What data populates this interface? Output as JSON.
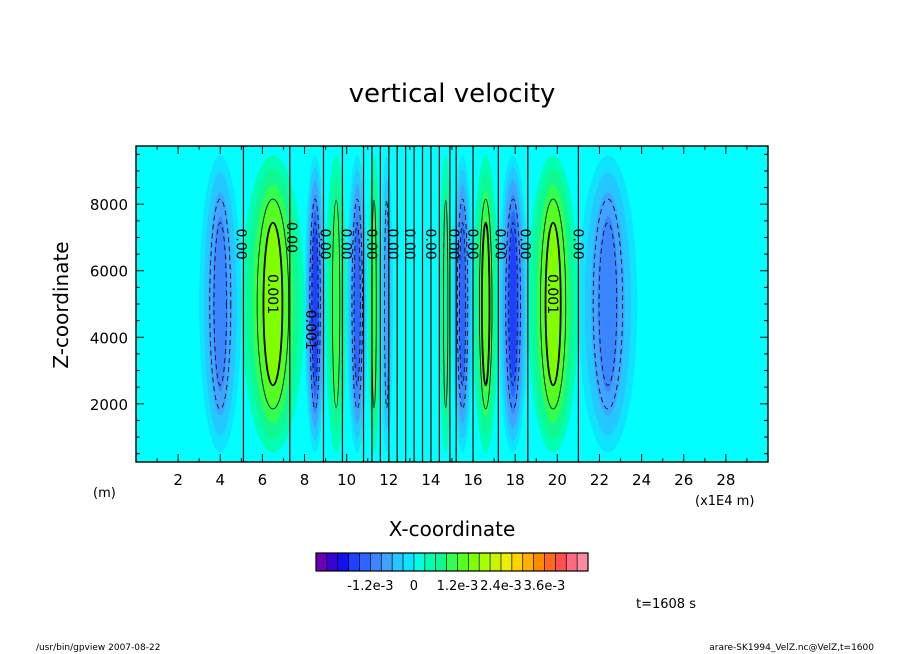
{
  "chart_data": {
    "type": "contour",
    "title": "vertical velocity",
    "xlabel": "X-coordinate",
    "ylabel": "Z-coordinate",
    "x_unit_left": "(m)",
    "x_unit_right": "(x1E4 m)",
    "xlim": [
      0,
      30
    ],
    "ylim": [
      250,
      9750
    ],
    "x_ticks": [
      2,
      4,
      6,
      8,
      10,
      12,
      14,
      16,
      18,
      20,
      22,
      24,
      26,
      28
    ],
    "x_tick_labels": [
      "2",
      "4",
      "6",
      "8",
      "10",
      "12",
      "14",
      "16",
      "18",
      "20",
      "22",
      "24",
      "26",
      "28"
    ],
    "y_ticks": [
      2000,
      4000,
      6000,
      8000
    ],
    "y_tick_labels": [
      "2000",
      "4000",
      "6000",
      "8000"
    ],
    "background_color": "#00ffff",
    "cells": [
      {
        "x0": 3.0,
        "x1": 5.0,
        "w": -0.0012
      },
      {
        "x0": 5.0,
        "x1": 8.0,
        "w": 0.0016
      },
      {
        "x0": 8.0,
        "x1": 9.0,
        "w": -0.0018
      },
      {
        "x0": 9.0,
        "x1": 10.0,
        "w": 0.0009
      },
      {
        "x0": 10.0,
        "x1": 11.0,
        "w": -0.0016
      },
      {
        "x0": 11.0,
        "x1": 11.6,
        "w": 0.0008
      },
      {
        "x0": 11.6,
        "x1": 12.2,
        "w": -0.0008
      },
      {
        "x0": 14.4,
        "x1": 15.0,
        "w": 0.0006
      },
      {
        "x0": 15.0,
        "x1": 16.0,
        "w": -0.0014
      },
      {
        "x0": 16.0,
        "x1": 17.2,
        "w": 0.0012
      },
      {
        "x0": 17.2,
        "x1": 18.6,
        "w": -0.0018
      },
      {
        "x0": 18.6,
        "x1": 21.0,
        "w": 0.0016
      },
      {
        "x0": 21.0,
        "x1": 23.8,
        "w": -0.0011
      }
    ],
    "zero_contour_x": [
      5.1,
      7.3,
      8.9,
      9.8,
      10.8,
      11.2,
      11.6,
      12.0,
      12.4,
      12.8,
      13.2,
      13.6,
      14.0,
      14.4,
      14.9,
      15.2,
      16.0,
      17.2,
      18.6,
      21.0
    ],
    "contour_labels": [
      {
        "x": 5.0,
        "z": 6800,
        "text": "0.00"
      },
      {
        "x": 6.5,
        "z": 5300,
        "text": "0.001"
      },
      {
        "x": 7.4,
        "z": 7000,
        "text": "0.00"
      },
      {
        "x": 8.3,
        "z": 4300,
        "text": "-0.001"
      },
      {
        "x": 9.0,
        "z": 6800,
        "text": "0.00"
      },
      {
        "x": 10.0,
        "z": 6800,
        "text": "0.00"
      },
      {
        "x": 11.2,
        "z": 6800,
        "text": "0.00"
      },
      {
        "x": 12.2,
        "z": 6800,
        "text": "0.00"
      },
      {
        "x": 13.0,
        "z": 6800,
        "text": "0.00"
      },
      {
        "x": 14.0,
        "z": 6800,
        "text": "0.00"
      },
      {
        "x": 15.1,
        "z": 6800,
        "text": "0.00"
      },
      {
        "x": 16.0,
        "z": 6800,
        "text": "0.00"
      },
      {
        "x": 17.3,
        "z": 6800,
        "text": "0.00"
      },
      {
        "x": 18.5,
        "z": 6800,
        "text": "0.00"
      },
      {
        "x": 19.8,
        "z": 5300,
        "text": "0.001"
      },
      {
        "x": 21.0,
        "z": 6800,
        "text": "0.00"
      }
    ],
    "colorbar": {
      "colors": [
        "#6a00b4",
        "#3a00d8",
        "#1010f0",
        "#2040ff",
        "#2a66ff",
        "#3b86ff",
        "#3fa3ff",
        "#22c8ff",
        "#10e3ff",
        "#00ffe0",
        "#00ffb0",
        "#10f890",
        "#30ff50",
        "#55ff20",
        "#80ff00",
        "#a8ff00",
        "#ccf400",
        "#ecee00",
        "#ffd200",
        "#ffb000",
        "#ff8a00",
        "#ff6a20",
        "#ff5050",
        "#ff6a80",
        "#ff8aa0"
      ],
      "tick_labels": [
        "-1.2e-3",
        "0",
        "1.2e-3",
        "2.4e-3",
        "3.6e-3"
      ]
    }
  },
  "annotations": {
    "time": "t=1608 s",
    "footer_left": "/usr/bin/gpview   2007-08-22",
    "footer_right": "arare-SK1994_VelZ.nc@VelZ,t=1600"
  }
}
